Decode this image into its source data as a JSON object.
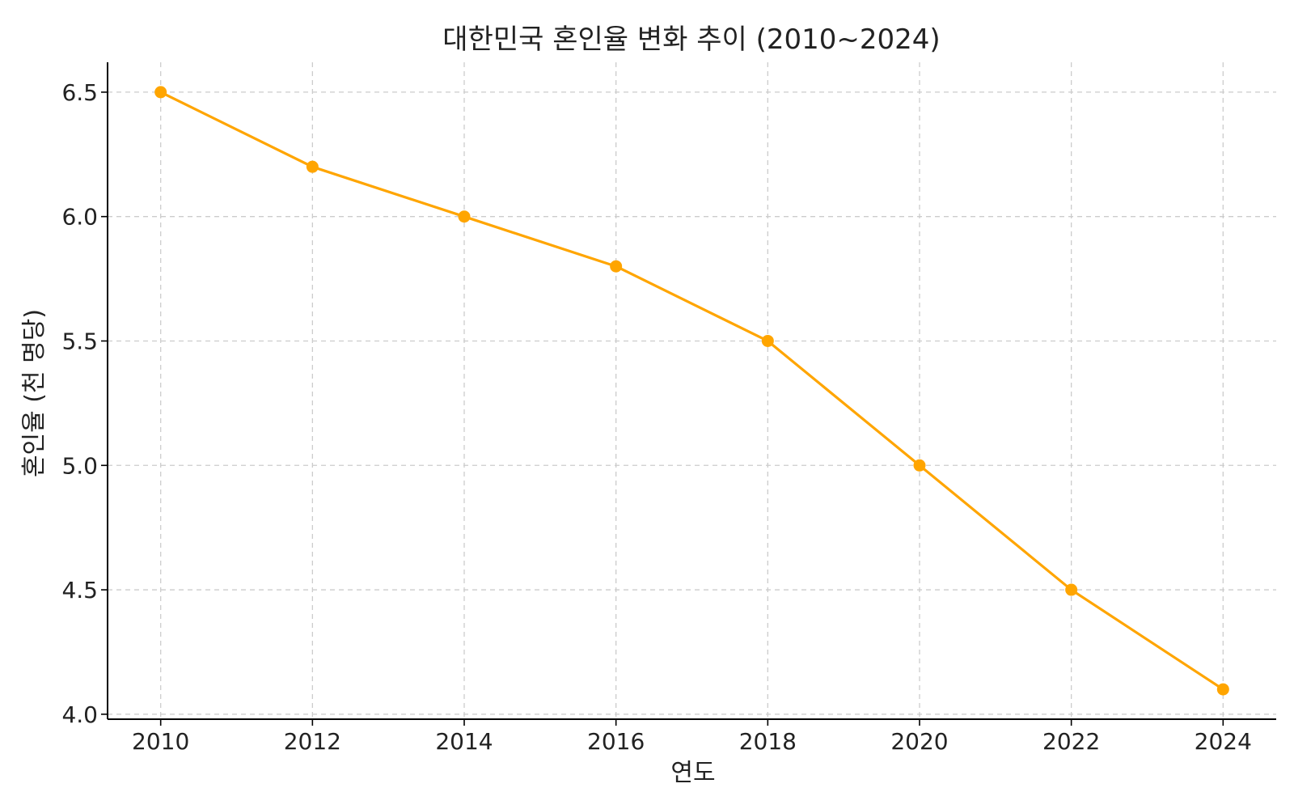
{
  "chart_data": {
    "type": "line",
    "title": "대한민국 혼인율 변화 추이 (2010~2024)",
    "xlabel": "연도",
    "ylabel": "혼인율 (천 명당)",
    "x": [
      2010,
      2012,
      2014,
      2016,
      2018,
      2020,
      2022,
      2024
    ],
    "series": [
      {
        "values": [
          6.5,
          6.2,
          6.0,
          5.8,
          5.5,
          5.0,
          4.5,
          4.1
        ],
        "color": "#FFA500",
        "marker": "circle"
      }
    ],
    "xticks": [
      "2010",
      "2012",
      "2014",
      "2016",
      "2018",
      "2020",
      "2022",
      "2024"
    ],
    "yticks": [
      "4.0",
      "4.5",
      "5.0",
      "5.5",
      "6.0",
      "6.5"
    ],
    "xlim": [
      2009.3,
      2024.7
    ],
    "ylim": [
      3.98,
      6.62
    ],
    "grid": true,
    "grid_style": "dashed",
    "legend": "none"
  }
}
